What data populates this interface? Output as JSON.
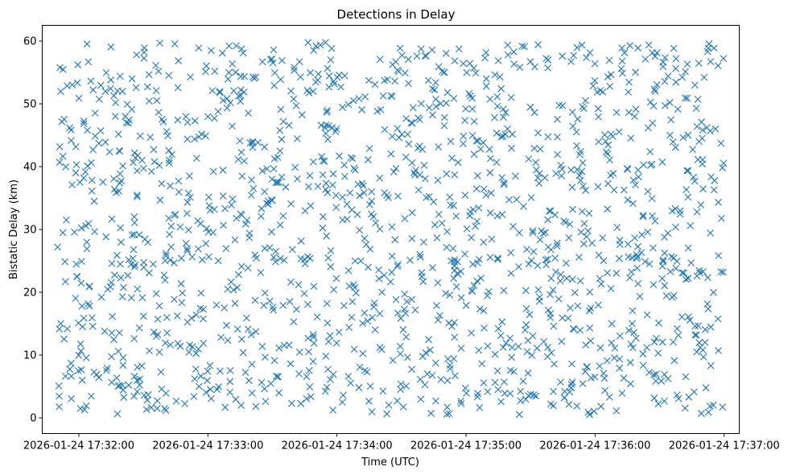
{
  "chart_data": {
    "type": "scatter",
    "title": "Detections in Delay",
    "xlabel": "Time (UTC)",
    "ylabel": "Bistatic Delay (km)",
    "marker": "x",
    "marker_color": "#1f77b4",
    "x_start": "2026-01-24 17:31:50",
    "x_end": "2026-01-24 17:37:00",
    "xlim": [
      "2026-01-24 17:31:43",
      "2026-01-24 17:37:07"
    ],
    "ylim": [
      -2.5,
      62.5
    ],
    "x_ticks": [
      "2026-01-24 17:32:00",
      "2026-01-24 17:33:00",
      "2026-01-24 17:34:00",
      "2026-01-24 17:35:00",
      "2026-01-24 17:36:00",
      "2026-01-24 17:37:00"
    ],
    "y_ticks": [
      0,
      10,
      20,
      30,
      40,
      50,
      60
    ],
    "grid": false,
    "legend": "none",
    "points_shown": 1500,
    "y_range": [
      0.5,
      59.8
    ]
  }
}
